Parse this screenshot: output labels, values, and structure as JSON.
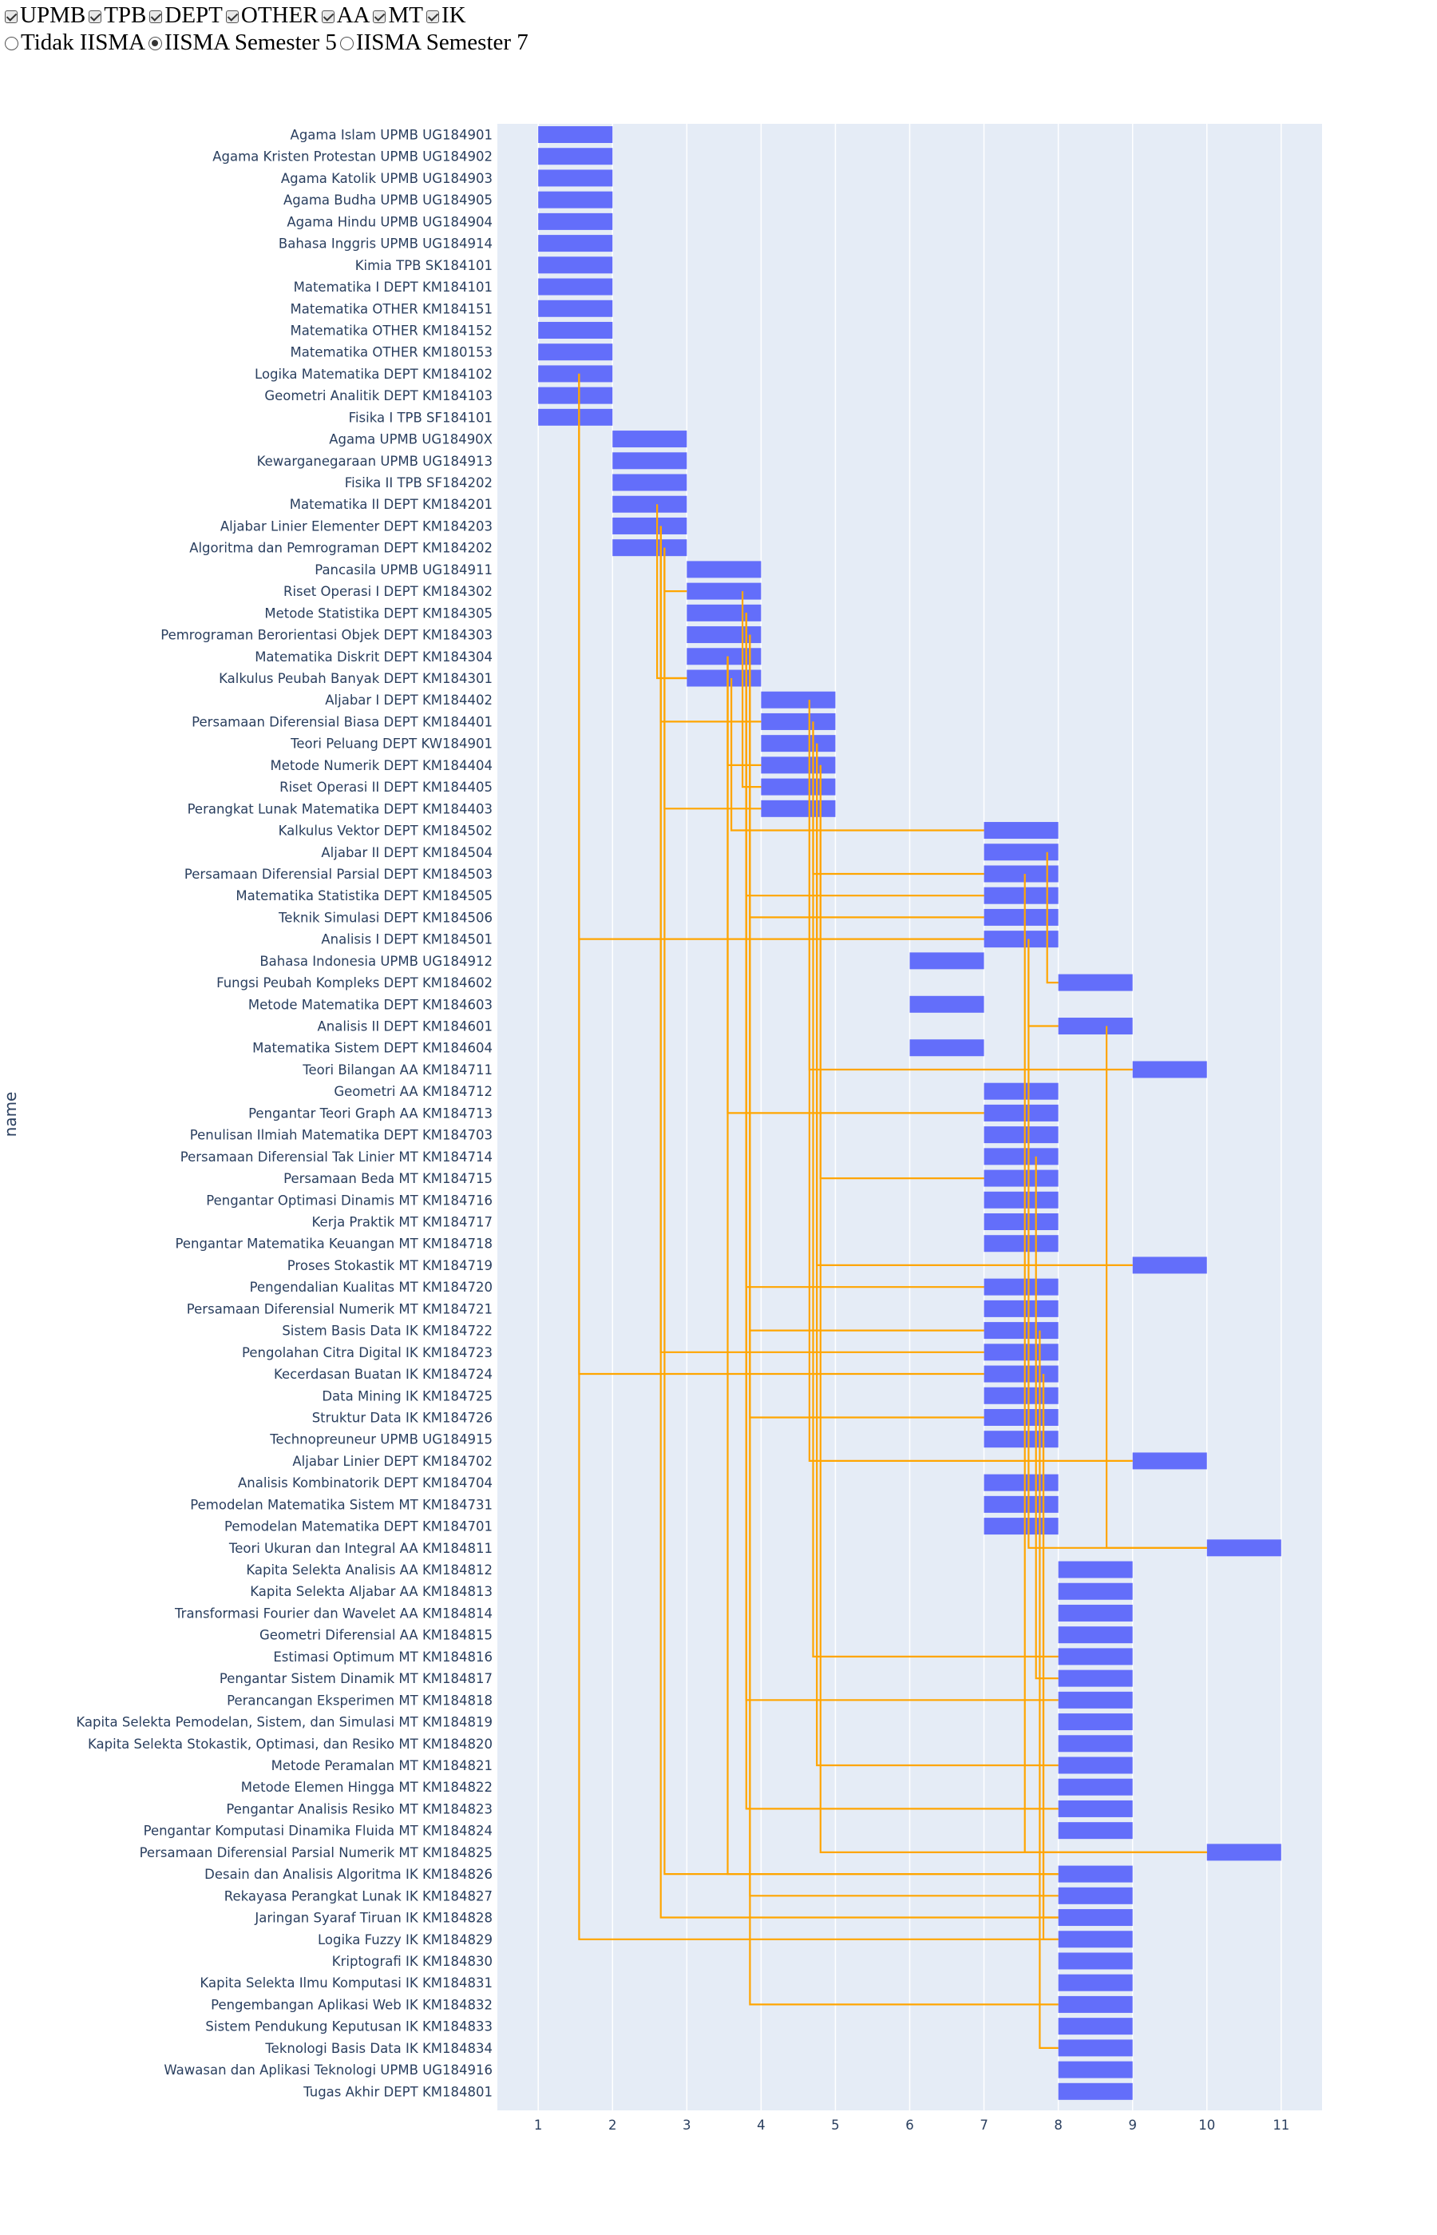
{
  "controls": {
    "checkboxes": [
      {
        "label": "UPMB",
        "checked": true
      },
      {
        "label": "TPB",
        "checked": true
      },
      {
        "label": "DEPT",
        "checked": true
      },
      {
        "label": "OTHER",
        "checked": true
      },
      {
        "label": "AA",
        "checked": true
      },
      {
        "label": "MT",
        "checked": true
      },
      {
        "label": "IK",
        "checked": true
      }
    ],
    "radios": [
      {
        "label": "Tidak IISMA",
        "checked": false
      },
      {
        "label": "IISMA Semester 5",
        "checked": true
      },
      {
        "label": "IISMA Semester 7",
        "checked": false
      }
    ]
  },
  "chart_data": {
    "type": "bar",
    "orientation": "horizontal",
    "ylabel": "name",
    "xlabel": "",
    "xlim": [
      0.45,
      11.55
    ],
    "xticks": [
      1,
      2,
      3,
      4,
      5,
      6,
      7,
      8,
      9,
      10,
      11
    ],
    "grid": true,
    "colors": {
      "bar": "#636efa",
      "link": "#ffa500",
      "plot_bg": "#e5ecf6",
      "grid": "#ffffff",
      "tick_text": "#2a3f5f"
    },
    "courses": [
      {
        "name": "Agama Islam UPMB UG184901",
        "start": 1,
        "end": 2
      },
      {
        "name": "Agama Kristen Protestan UPMB UG184902",
        "start": 1,
        "end": 2
      },
      {
        "name": "Agama Katolik UPMB UG184903",
        "start": 1,
        "end": 2
      },
      {
        "name": "Agama Budha UPMB UG184905",
        "start": 1,
        "end": 2
      },
      {
        "name": "Agama Hindu UPMB UG184904",
        "start": 1,
        "end": 2
      },
      {
        "name": "Bahasa Inggris UPMB UG184914",
        "start": 1,
        "end": 2
      },
      {
        "name": "Kimia TPB SK184101",
        "start": 1,
        "end": 2
      },
      {
        "name": "Matematika I DEPT KM184101",
        "start": 1,
        "end": 2
      },
      {
        "name": "Matematika OTHER KM184151",
        "start": 1,
        "end": 2
      },
      {
        "name": "Matematika OTHER KM184152",
        "start": 1,
        "end": 2
      },
      {
        "name": "Matematika OTHER KM180153",
        "start": 1,
        "end": 2
      },
      {
        "name": "Logika Matematika DEPT KM184102",
        "start": 1,
        "end": 2
      },
      {
        "name": "Geometri Analitik DEPT KM184103",
        "start": 1,
        "end": 2
      },
      {
        "name": "Fisika I TPB SF184101",
        "start": 1,
        "end": 2
      },
      {
        "name": "Agama UPMB UG18490X",
        "start": 2,
        "end": 3
      },
      {
        "name": "Kewarganegaraan UPMB UG184913",
        "start": 2,
        "end": 3
      },
      {
        "name": "Fisika II TPB SF184202",
        "start": 2,
        "end": 3
      },
      {
        "name": "Matematika II DEPT KM184201",
        "start": 2,
        "end": 3
      },
      {
        "name": "Aljabar Linier Elementer DEPT KM184203",
        "start": 2,
        "end": 3
      },
      {
        "name": "Algoritma dan Pemrograman DEPT KM184202",
        "start": 2,
        "end": 3
      },
      {
        "name": "Pancasila UPMB UG184911",
        "start": 3,
        "end": 4
      },
      {
        "name": "Riset Operasi I DEPT KM184302",
        "start": 3,
        "end": 4
      },
      {
        "name": "Metode Statistika DEPT KM184305",
        "start": 3,
        "end": 4
      },
      {
        "name": "Pemrograman Berorientasi Objek DEPT KM184303",
        "start": 3,
        "end": 4
      },
      {
        "name": "Matematika Diskrit DEPT KM184304",
        "start": 3,
        "end": 4
      },
      {
        "name": "Kalkulus Peubah Banyak DEPT KM184301",
        "start": 3,
        "end": 4
      },
      {
        "name": "Aljabar I DEPT KM184402",
        "start": 4,
        "end": 5
      },
      {
        "name": "Persamaan Diferensial Biasa DEPT KM184401",
        "start": 4,
        "end": 5
      },
      {
        "name": "Teori Peluang DEPT KW184901",
        "start": 4,
        "end": 5
      },
      {
        "name": "Metode Numerik DEPT KM184404",
        "start": 4,
        "end": 5
      },
      {
        "name": "Riset Operasi II DEPT KM184405",
        "start": 4,
        "end": 5
      },
      {
        "name": "Perangkat Lunak Matematika DEPT KM184403",
        "start": 4,
        "end": 5
      },
      {
        "name": "Kalkulus Vektor DEPT KM184502",
        "start": 7,
        "end": 8
      },
      {
        "name": "Aljabar II DEPT KM184504",
        "start": 7,
        "end": 8
      },
      {
        "name": "Persamaan Diferensial Parsial DEPT KM184503",
        "start": 7,
        "end": 8
      },
      {
        "name": "Matematika Statistika DEPT KM184505",
        "start": 7,
        "end": 8
      },
      {
        "name": "Teknik Simulasi DEPT KM184506",
        "start": 7,
        "end": 8
      },
      {
        "name": "Analisis I DEPT KM184501",
        "start": 7,
        "end": 8
      },
      {
        "name": "Bahasa Indonesia UPMB UG184912",
        "start": 6,
        "end": 7
      },
      {
        "name": "Fungsi Peubah Kompleks DEPT KM184602",
        "start": 8,
        "end": 9
      },
      {
        "name": "Metode Matematika DEPT KM184603",
        "start": 6,
        "end": 7
      },
      {
        "name": "Analisis II DEPT KM184601",
        "start": 8,
        "end": 9
      },
      {
        "name": "Matematika Sistem DEPT KM184604",
        "start": 6,
        "end": 7
      },
      {
        "name": "Teori Bilangan AA KM184711",
        "start": 9,
        "end": 10
      },
      {
        "name": "Geometri AA KM184712",
        "start": 7,
        "end": 8
      },
      {
        "name": "Pengantar Teori Graph AA KM184713",
        "start": 7,
        "end": 8
      },
      {
        "name": "Penulisan Ilmiah Matematika DEPT KM184703",
        "start": 7,
        "end": 8
      },
      {
        "name": "Persamaan Diferensial Tak Linier MT KM184714",
        "start": 7,
        "end": 8
      },
      {
        "name": "Persamaan Beda MT KM184715",
        "start": 7,
        "end": 8
      },
      {
        "name": "Pengantar Optimasi Dinamis MT KM184716",
        "start": 7,
        "end": 8
      },
      {
        "name": "Kerja Praktik MT KM184717",
        "start": 7,
        "end": 8
      },
      {
        "name": "Pengantar Matematika Keuangan MT KM184718",
        "start": 7,
        "end": 8
      },
      {
        "name": "Proses Stokastik MT KM184719",
        "start": 9,
        "end": 10
      },
      {
        "name": "Pengendalian Kualitas MT KM184720",
        "start": 7,
        "end": 8
      },
      {
        "name": "Persamaan Diferensial Numerik MT KM184721",
        "start": 7,
        "end": 8
      },
      {
        "name": "Sistem Basis Data IK KM184722",
        "start": 7,
        "end": 8
      },
      {
        "name": "Pengolahan Citra Digital IK KM184723",
        "start": 7,
        "end": 8
      },
      {
        "name": "Kecerdasan Buatan IK KM184724",
        "start": 7,
        "end": 8
      },
      {
        "name": "Data Mining IK KM184725",
        "start": 7,
        "end": 8
      },
      {
        "name": "Struktur Data IK KM184726",
        "start": 7,
        "end": 8
      },
      {
        "name": "Technopreuneur UPMB UG184915",
        "start": 7,
        "end": 8
      },
      {
        "name": "Aljabar Linier DEPT KM184702",
        "start": 9,
        "end": 10
      },
      {
        "name": "Analisis Kombinatorik DEPT KM184704",
        "start": 7,
        "end": 8
      },
      {
        "name": "Pemodelan Matematika Sistem MT KM184731",
        "start": 7,
        "end": 8
      },
      {
        "name": "Pemodelan Matematika DEPT KM184701",
        "start": 7,
        "end": 8
      },
      {
        "name": "Teori Ukuran dan Integral AA KM184811",
        "start": 10,
        "end": 11
      },
      {
        "name": "Kapita Selekta Analisis AA KM184812",
        "start": 8,
        "end": 9
      },
      {
        "name": "Kapita Selekta Aljabar AA KM184813",
        "start": 8,
        "end": 9
      },
      {
        "name": "Transformasi Fourier dan Wavelet AA KM184814",
        "start": 8,
        "end": 9
      },
      {
        "name": "Geometri Diferensial AA KM184815",
        "start": 8,
        "end": 9
      },
      {
        "name": "Estimasi Optimum MT KM184816",
        "start": 8,
        "end": 9
      },
      {
        "name": "Pengantar Sistem Dinamik MT KM184817",
        "start": 8,
        "end": 9
      },
      {
        "name": "Perancangan Eksperimen MT KM184818",
        "start": 8,
        "end": 9
      },
      {
        "name": "Kapita Selekta Pemodelan, Sistem, dan Simulasi MT KM184819",
        "start": 8,
        "end": 9
      },
      {
        "name": "Kapita Selekta Stokastik, Optimasi, dan Resiko MT KM184820",
        "start": 8,
        "end": 9
      },
      {
        "name": "Metode Peramalan MT KM184821",
        "start": 8,
        "end": 9
      },
      {
        "name": "Metode Elemen Hingga MT KM184822",
        "start": 8,
        "end": 9
      },
      {
        "name": "Pengantar Analisis Resiko MT KM184823",
        "start": 8,
        "end": 9
      },
      {
        "name": "Pengantar Komputasi Dinamika Fluida MT KM184824",
        "start": 8,
        "end": 9
      },
      {
        "name": "Persamaan Diferensial Parsial Numerik MT KM184825",
        "start": 10,
        "end": 11
      },
      {
        "name": "Desain dan Analisis Algoritma IK KM184826",
        "start": 8,
        "end": 9
      },
      {
        "name": "Rekayasa Perangkat Lunak IK KM184827",
        "start": 8,
        "end": 9
      },
      {
        "name": "Jaringan Syaraf Tiruan IK KM184828",
        "start": 8,
        "end": 9
      },
      {
        "name": "Logika Fuzzy IK KM184829",
        "start": 8,
        "end": 9
      },
      {
        "name": "Kriptografi IK KM184830",
        "start": 8,
        "end": 9
      },
      {
        "name": "Kapita Selekta Ilmu Komputasi IK KM184831",
        "start": 8,
        "end": 9
      },
      {
        "name": "Pengembangan Aplikasi Web IK KM184832",
        "start": 8,
        "end": 9
      },
      {
        "name": "Sistem Pendukung Keputusan IK KM184833",
        "start": 8,
        "end": 9
      },
      {
        "name": "Teknologi Basis Data IK KM184834",
        "start": 8,
        "end": 9
      },
      {
        "name": "Wawasan dan Aplikasi Teknologi UPMB UG184916",
        "start": 8,
        "end": 9
      },
      {
        "name": "Tugas Akhir DEPT KM184801",
        "start": 8,
        "end": 9
      }
    ],
    "prerequisites": [
      {
        "from": "Logika Matematika DEPT KM184102",
        "to": [
          "Analisis I DEPT KM184501",
          "Kecerdasan Buatan IK KM184724",
          "Logika Fuzzy IK KM184829"
        ]
      },
      {
        "from": "Matematika II DEPT KM184201",
        "to": [
          "Kalkulus Peubah Banyak DEPT KM184301"
        ]
      },
      {
        "from": "Aljabar Linier Elementer DEPT KM184203",
        "to": [
          "Kalkulus Peubah Banyak DEPT KM184301",
          "Persamaan Diferensial Biasa DEPT KM184401",
          "Pengolahan Citra Digital IK KM184723",
          "Jaringan Syaraf Tiruan IK KM184828"
        ]
      },
      {
        "from": "Algoritma dan Pemrograman DEPT KM184202",
        "to": [
          "Riset Operasi I DEPT KM184302",
          "Perangkat Lunak Matematika DEPT KM184403",
          "Desain dan Analisis Algoritma IK KM184826"
        ]
      },
      {
        "from": "Riset Operasi I DEPT KM184302",
        "to": [
          "Riset Operasi II DEPT KM184405"
        ]
      },
      {
        "from": "Metode Statistika DEPT KM184305",
        "to": [
          "Matematika Statistika DEPT KM184505",
          "Pengendalian Kualitas MT KM184720",
          "Perancangan Eksperimen MT KM184818",
          "Pengantar Analisis Resiko MT KM184823"
        ]
      },
      {
        "from": "Pemrograman Berorientasi Objek DEPT KM184303",
        "to": [
          "Teknik Simulasi DEPT KM184506",
          "Sistem Basis Data IK KM184722",
          "Struktur Data IK KM184726",
          "Rekayasa Perangkat Lunak IK KM184827",
          "Pengembangan Aplikasi Web IK KM184832"
        ]
      },
      {
        "from": "Matematika Diskrit DEPT KM184304",
        "to": [
          "Metode Numerik DEPT KM184404",
          "Pengantar Teori Graph AA KM184713",
          "Desain dan Analisis Algoritma IK KM184826"
        ]
      },
      {
        "from": "Kalkulus Peubah Banyak DEPT KM184301",
        "to": [
          "Kalkulus Vektor DEPT KM184502"
        ]
      },
      {
        "from": "Aljabar I DEPT KM184402",
        "to": [
          "Teori Bilangan AA KM184711",
          "Aljabar Linier DEPT KM184702"
        ]
      },
      {
        "from": "Persamaan Diferensial Biasa DEPT KM184401",
        "to": [
          "Persamaan Diferensial Parsial DEPT KM184503",
          "Estimasi Optimum MT KM184816"
        ]
      },
      {
        "from": "Teori Peluang DEPT KW184901",
        "to": [
          "Proses Stokastik MT KM184719",
          "Metode Peramalan MT KM184821"
        ]
      },
      {
        "from": "Metode Numerik DEPT KM184404",
        "to": [
          "Persamaan Beda MT KM184715",
          "Persamaan Diferensial Parsial Numerik MT KM184825"
        ]
      },
      {
        "from": "Aljabar II DEPT KM184504",
        "to": [
          "Fungsi Peubah Kompleks DEPT KM184602"
        ]
      },
      {
        "from": "Persamaan Diferensial Parsial DEPT KM184503",
        "to": [
          "Persamaan Diferensial Parsial Numerik MT KM184825"
        ]
      },
      {
        "from": "Analisis I DEPT KM184501",
        "to": [
          "Analisis II DEPT KM184601",
          "Teori Ukuran dan Integral AA KM184811"
        ]
      },
      {
        "from": "Analisis II DEPT KM184601",
        "to": [
          "Teori Ukuran dan Integral AA KM184811"
        ]
      },
      {
        "from": "Persamaan Diferensial Tak Linier MT KM184714",
        "to": [
          "Pengantar Sistem Dinamik MT KM184817"
        ]
      },
      {
        "from": "Sistem Basis Data IK KM184722",
        "to": [
          "Teknologi Basis Data IK KM184834"
        ]
      },
      {
        "from": "Kecerdasan Buatan IK KM184724",
        "to": [
          "Jaringan Syaraf Tiruan IK KM184828",
          "Logika Fuzzy IK KM184829"
        ]
      }
    ]
  }
}
